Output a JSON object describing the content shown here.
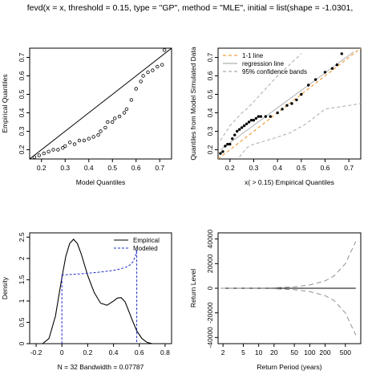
{
  "figure": {
    "title": "fevd(x = x, threshold = 0.15, type = \"GP\", method = \"MLE\", initial = list(shape = -1.0301,"
  },
  "chart_data": [
    {
      "type": "scatter",
      "xlabel": "Model Quantiles",
      "ylabel": "Empirical Quantiles",
      "xlim": [
        0.15,
        0.75
      ],
      "ylim": [
        0.15,
        0.75
      ],
      "x_ticks": [
        0.2,
        0.3,
        0.4,
        0.5,
        0.6,
        0.7
      ],
      "y_ticks": [
        0.2,
        0.3,
        0.4,
        0.5,
        0.6,
        0.7
      ],
      "reference_line": "1-1 line",
      "points": [
        [
          0.17,
          0.16
        ],
        [
          0.19,
          0.17
        ],
        [
          0.21,
          0.18
        ],
        [
          0.23,
          0.19
        ],
        [
          0.25,
          0.2
        ],
        [
          0.27,
          0.2
        ],
        [
          0.29,
          0.21
        ],
        [
          0.3,
          0.22
        ],
        [
          0.32,
          0.24
        ],
        [
          0.34,
          0.23
        ],
        [
          0.36,
          0.25
        ],
        [
          0.38,
          0.25
        ],
        [
          0.4,
          0.26
        ],
        [
          0.42,
          0.27
        ],
        [
          0.44,
          0.28
        ],
        [
          0.45,
          0.3
        ],
        [
          0.47,
          0.32
        ],
        [
          0.48,
          0.35
        ],
        [
          0.5,
          0.35
        ],
        [
          0.51,
          0.37
        ],
        [
          0.53,
          0.38
        ],
        [
          0.55,
          0.4
        ],
        [
          0.56,
          0.42
        ],
        [
          0.58,
          0.47
        ],
        [
          0.6,
          0.53
        ],
        [
          0.62,
          0.57
        ],
        [
          0.63,
          0.6
        ],
        [
          0.65,
          0.62
        ],
        [
          0.67,
          0.63
        ],
        [
          0.69,
          0.65
        ],
        [
          0.71,
          0.66
        ],
        [
          0.72,
          0.74
        ]
      ]
    },
    {
      "type": "scatter",
      "xlabel": "x( > 0.15) Empirical Quantiles",
      "ylabel": "Quantiles from Model Simulated Data",
      "xlim": [
        0.15,
        0.75
      ],
      "ylim": [
        0.15,
        0.75
      ],
      "x_ticks": [
        0.2,
        0.3,
        0.4,
        0.5,
        0.6,
        0.7
      ],
      "y_ticks": [
        0.2,
        0.3,
        0.4,
        0.5,
        0.6,
        0.7
      ],
      "legend": [
        "1-1 line",
        "regression line",
        "95% confidence bands"
      ],
      "legend_position": "top-left",
      "points": [
        [
          0.16,
          0.18
        ],
        [
          0.17,
          0.19
        ],
        [
          0.18,
          0.22
        ],
        [
          0.19,
          0.23
        ],
        [
          0.2,
          0.23
        ],
        [
          0.21,
          0.26
        ],
        [
          0.22,
          0.28
        ],
        [
          0.23,
          0.3
        ],
        [
          0.24,
          0.31
        ],
        [
          0.25,
          0.32
        ],
        [
          0.26,
          0.33
        ],
        [
          0.27,
          0.34
        ],
        [
          0.28,
          0.35
        ],
        [
          0.29,
          0.36
        ],
        [
          0.3,
          0.36
        ],
        [
          0.31,
          0.37
        ],
        [
          0.32,
          0.38
        ],
        [
          0.33,
          0.38
        ],
        [
          0.35,
          0.38
        ],
        [
          0.37,
          0.38
        ],
        [
          0.4,
          0.4
        ],
        [
          0.42,
          0.42
        ],
        [
          0.44,
          0.44
        ],
        [
          0.46,
          0.45
        ],
        [
          0.48,
          0.47
        ],
        [
          0.5,
          0.5
        ],
        [
          0.53,
          0.55
        ],
        [
          0.56,
          0.58
        ],
        [
          0.6,
          0.62
        ],
        [
          0.63,
          0.64
        ],
        [
          0.65,
          0.66
        ],
        [
          0.67,
          0.72
        ]
      ],
      "regression_line": [
        [
          0.16,
          0.2
        ],
        [
          0.72,
          0.73
        ]
      ],
      "upper_band": [
        [
          0.16,
          0.25
        ],
        [
          0.2,
          0.33
        ],
        [
          0.25,
          0.4
        ],
        [
          0.27,
          0.42
        ],
        [
          0.3,
          0.46
        ],
        [
          0.35,
          0.53
        ],
        [
          0.4,
          0.6
        ],
        [
          0.45,
          0.66
        ],
        [
          0.5,
          0.72
        ]
      ],
      "lower_band": [
        [
          0.24,
          0.16
        ],
        [
          0.27,
          0.21
        ],
        [
          0.3,
          0.23
        ],
        [
          0.38,
          0.26
        ],
        [
          0.45,
          0.29
        ],
        [
          0.52,
          0.34
        ],
        [
          0.56,
          0.38
        ],
        [
          0.6,
          0.42
        ],
        [
          0.65,
          0.43
        ],
        [
          0.7,
          0.44
        ],
        [
          0.75,
          0.45
        ]
      ]
    },
    {
      "type": "line",
      "xlabel": "N = 32   Bandwidth = 0.07787",
      "ylabel": "Density",
      "xlim": [
        -0.25,
        0.85
      ],
      "ylim": [
        0,
        2.6
      ],
      "x_ticks": [
        -0.2,
        0.0,
        0.2,
        0.4,
        0.6,
        0.8
      ],
      "y_ticks": [
        0.0,
        0.5,
        1.0,
        1.5,
        2.0,
        2.5
      ],
      "legend": [
        "Empirical",
        "Modeled"
      ],
      "legend_position": "top-right",
      "series": [
        {
          "name": "Empirical",
          "x": [
            -0.15,
            -0.1,
            -0.05,
            0.0,
            0.03,
            0.06,
            0.09,
            0.12,
            0.15,
            0.2,
            0.25,
            0.3,
            0.35,
            0.4,
            0.43,
            0.46,
            0.49,
            0.52,
            0.55,
            0.58,
            0.62,
            0.66,
            0.7
          ],
          "y": [
            0.0,
            0.12,
            0.65,
            1.55,
            2.05,
            2.35,
            2.45,
            2.35,
            2.1,
            1.6,
            1.2,
            0.95,
            0.9,
            1.0,
            1.07,
            1.08,
            0.98,
            0.75,
            0.52,
            0.3,
            0.12,
            0.03,
            0.0
          ]
        },
        {
          "name": "Modeled",
          "x": [
            0.0,
            0.0,
            0.1,
            0.2,
            0.3,
            0.4,
            0.45,
            0.5,
            0.53,
            0.55,
            0.57,
            0.58,
            0.58
          ],
          "y": [
            0.0,
            1.61,
            1.63,
            1.65,
            1.68,
            1.72,
            1.75,
            1.8,
            1.85,
            1.92,
            2.05,
            2.2,
            0.0
          ]
        }
      ]
    },
    {
      "type": "line",
      "xlabel": "Return Period (years)",
      "ylabel": "Return Level",
      "x_scale": "log",
      "xlim": [
        1.6,
        1000
      ],
      "ylim": [
        -45000,
        45000
      ],
      "x_ticks": [
        2,
        5,
        10,
        20,
        50,
        100,
        200,
        500
      ],
      "y_ticks": [
        -40000,
        -20000,
        0,
        20000,
        40000
      ],
      "series": [
        {
          "x": [
            1.8,
            2,
            5,
            10,
            20,
            50,
            100,
            200,
            500,
            800
          ],
          "y": [
            0,
            0,
            0,
            0,
            0,
            0,
            0,
            0,
            0,
            0
          ]
        },
        {
          "x": [
            1.8,
            2,
            5,
            10,
            20,
            50,
            100,
            200,
            300,
            500,
            800
          ],
          "y": [
            0,
            0,
            50,
            150,
            400,
            1200,
            2700,
            6000,
            10000,
            20000,
            38000
          ]
        },
        {
          "x": [
            1.8,
            2,
            5,
            10,
            20,
            50,
            100,
            200,
            300,
            500,
            800
          ],
          "y": [
            0,
            0,
            -50,
            -150,
            -400,
            -1200,
            -2700,
            -6000,
            -10000,
            -20000,
            -38000
          ]
        }
      ]
    }
  ]
}
